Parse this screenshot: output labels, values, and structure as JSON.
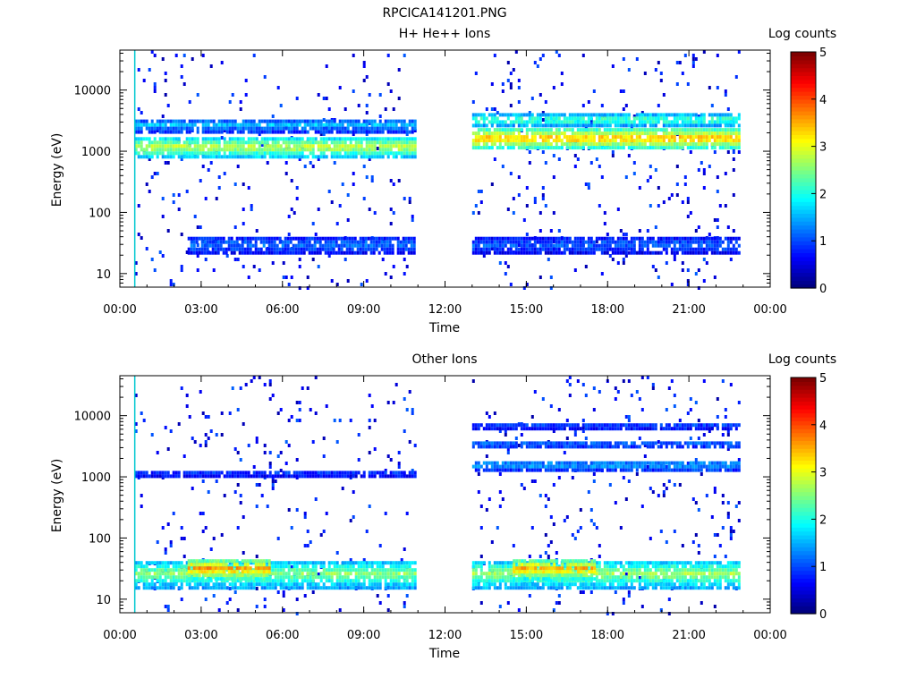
{
  "figure": {
    "title": "RPCICA141201.PNG"
  },
  "colors": {
    "colormap": [
      "#00007f",
      "#0000ff",
      "#007fff",
      "#00ffff",
      "#7fff7f",
      "#ffff00",
      "#ff7f00",
      "#ff0000",
      "#7f0000"
    ]
  },
  "chart_data": [
    {
      "type": "heatmap",
      "title": "H+ He++ Ions",
      "xlabel": "Time",
      "ylabel": "Energy (eV)",
      "x_ticks": [
        "00:00",
        "03:00",
        "06:00",
        "09:00",
        "12:00",
        "15:00",
        "18:00",
        "21:00",
        "00:00"
      ],
      "x_range_hours": [
        0,
        24
      ],
      "y_scale": "log",
      "y_range": [
        6,
        45000
      ],
      "y_ticks": [
        "10",
        "100",
        "1000",
        "10000"
      ],
      "y_tick_values": [
        10,
        100,
        1000,
        10000
      ],
      "colorbar": {
        "label": "Log counts",
        "range": [
          0,
          5
        ],
        "ticks": [
          "0",
          "1",
          "2",
          "3",
          "4",
          "5"
        ]
      },
      "data_intervals_hours": [
        [
          0.55,
          10.9
        ],
        [
          13.0,
          22.9
        ]
      ],
      "marker_line_hour": 0.55,
      "bands": [
        {
          "t0": 0.55,
          "t1": 10.9,
          "e_low": 800,
          "e_high": 1700,
          "level": 2.9
        },
        {
          "t0": 0.55,
          "t1": 10.9,
          "e_low": 2200,
          "e_high": 3300,
          "level": 1.6
        },
        {
          "t0": 2.5,
          "t1": 10.9,
          "e_low": 22,
          "e_high": 40,
          "level": 1.2
        },
        {
          "t0": 13.0,
          "t1": 22.9,
          "e_low": 1100,
          "e_high": 2400,
          "level": 3.5
        },
        {
          "t0": 13.0,
          "t1": 22.9,
          "e_low": 2500,
          "e_high": 4200,
          "level": 2.3
        },
        {
          "t0": 13.0,
          "t1": 22.9,
          "e_low": 22,
          "e_high": 40,
          "level": 1.1
        }
      ]
    },
    {
      "type": "heatmap",
      "title": "Other Ions",
      "xlabel": "Time",
      "ylabel": "Energy (eV)",
      "x_ticks": [
        "00:00",
        "03:00",
        "06:00",
        "09:00",
        "12:00",
        "15:00",
        "18:00",
        "21:00",
        "00:00"
      ],
      "x_range_hours": [
        0,
        24
      ],
      "y_scale": "log",
      "y_range": [
        6,
        45000
      ],
      "y_ticks": [
        "10",
        "100",
        "1000",
        "10000"
      ],
      "y_tick_values": [
        10,
        100,
        1000,
        10000
      ],
      "colorbar": {
        "label": "Log counts",
        "range": [
          0,
          5
        ],
        "ticks": [
          "0",
          "1",
          "2",
          "3",
          "4",
          "5"
        ]
      },
      "data_intervals_hours": [
        [
          0.55,
          10.9
        ],
        [
          13.0,
          22.9
        ]
      ],
      "marker_line_hour": 0.55,
      "bands": [
        {
          "t0": 0.55,
          "t1": 10.9,
          "e_low": 16,
          "e_high": 42,
          "level": 2.6
        },
        {
          "t0": 2.5,
          "t1": 5.5,
          "e_low": 22,
          "e_high": 45,
          "level": 3.7
        },
        {
          "t0": 0.55,
          "t1": 10.9,
          "e_low": 1000,
          "e_high": 1250,
          "level": 1.0
        },
        {
          "t0": 13.0,
          "t1": 22.9,
          "e_low": 16,
          "e_high": 42,
          "level": 2.7
        },
        {
          "t0": 14.5,
          "t1": 17.5,
          "e_low": 22,
          "e_high": 45,
          "level": 3.6
        },
        {
          "t0": 13.0,
          "t1": 22.9,
          "e_low": 1350,
          "e_high": 1800,
          "level": 1.6
        },
        {
          "t0": 13.0,
          "t1": 22.9,
          "e_low": 3000,
          "e_high": 3800,
          "level": 1.3
        },
        {
          "t0": 13.0,
          "t1": 22.9,
          "e_low": 6000,
          "e_high": 7500,
          "level": 1.1
        }
      ]
    }
  ]
}
